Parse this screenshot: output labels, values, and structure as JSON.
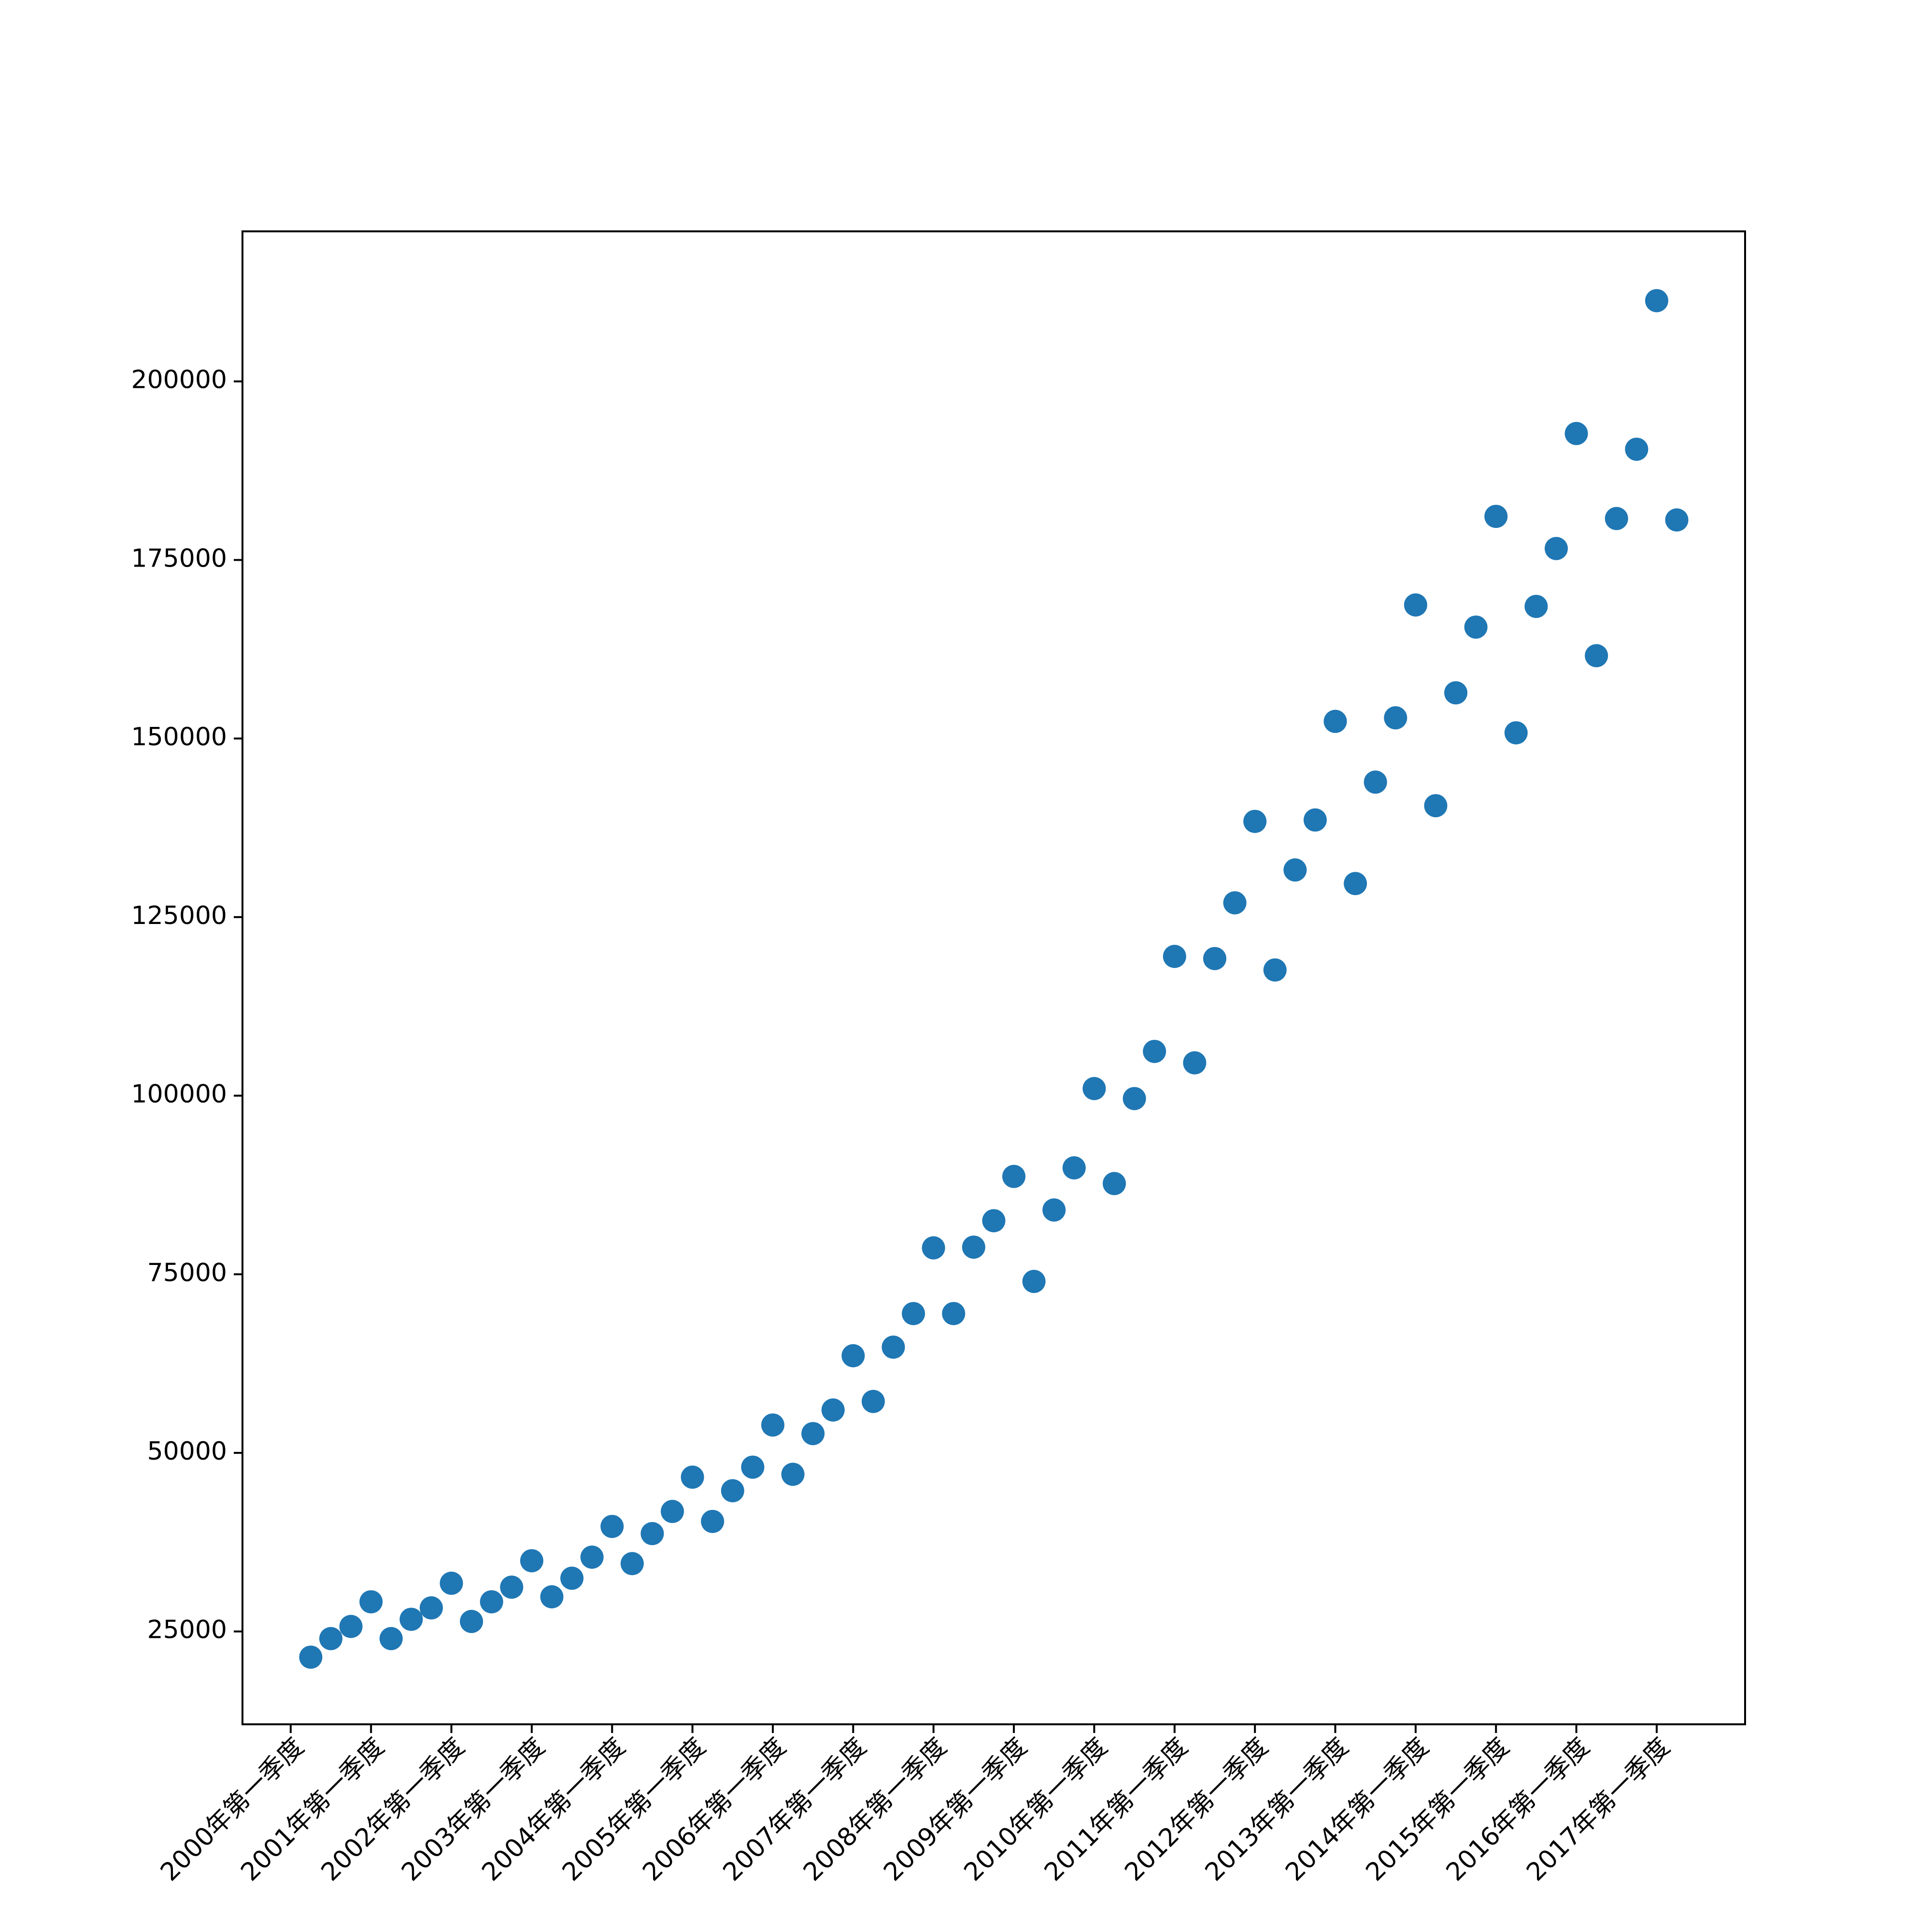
{
  "chart_data": {
    "type": "scatter",
    "x": [
      0,
      1,
      2,
      3,
      4,
      5,
      6,
      7,
      8,
      9,
      10,
      11,
      12,
      13,
      14,
      15,
      16,
      17,
      18,
      19,
      20,
      21,
      22,
      23,
      24,
      25,
      26,
      27,
      28,
      29,
      30,
      31,
      32,
      33,
      34,
      35,
      36,
      37,
      38,
      39,
      40,
      41,
      42,
      43,
      44,
      45,
      46,
      47,
      48,
      49,
      50,
      51,
      52,
      53,
      54,
      55,
      56,
      57,
      58,
      59,
      60,
      61,
      62,
      63,
      64,
      65,
      66,
      67,
      68
    ],
    "series": [
      {
        "color": "#1f77b4",
        "values": [
          21400,
          24000,
          25700,
          29150,
          24000,
          26700,
          28300,
          31750,
          26400,
          29150,
          31200,
          34900,
          29850,
          32450,
          35400,
          39700,
          34500,
          38700,
          41800,
          46600,
          40400,
          44700,
          48000,
          53900,
          47000,
          52700,
          56000,
          63600,
          57200,
          64800,
          69500,
          78700,
          69500,
          78800,
          82500,
          88700,
          74000,
          84000,
          89900,
          101000,
          87700,
          99600,
          106200,
          119500,
          104600,
          119200,
          127000,
          138400,
          117600,
          131600,
          138600,
          152400,
          129700,
          143900,
          152900,
          168700,
          140600,
          156400,
          165600,
          181100,
          150800,
          168500,
          176600,
          192700,
          161600,
          180800,
          190500,
          211300,
          180600
        ]
      }
    ],
    "xlim": [
      -3.4,
      71.4
    ],
    "xticks": [
      {
        "value": -1,
        "label": "2000年第一季度"
      },
      {
        "value": 3,
        "label": "2001年第一季度"
      },
      {
        "value": 7,
        "label": "2002年第一季度"
      },
      {
        "value": 11,
        "label": "2003年第一季度"
      },
      {
        "value": 15,
        "label": "2004年第一季度"
      },
      {
        "value": 19,
        "label": "2005年第一季度"
      },
      {
        "value": 23,
        "label": "2006年第一季度"
      },
      {
        "value": 27,
        "label": "2007年第一季度"
      },
      {
        "value": 31,
        "label": "2008年第一季度"
      },
      {
        "value": 35,
        "label": "2009年第一季度"
      },
      {
        "value": 39,
        "label": "2010年第一季度"
      },
      {
        "value": 43,
        "label": "2011年第一季度"
      },
      {
        "value": 47,
        "label": "2012年第一季度"
      },
      {
        "value": 51,
        "label": "2013年第一季度"
      },
      {
        "value": 55,
        "label": "2014年第一季度"
      },
      {
        "value": 59,
        "label": "2015年第一季度"
      },
      {
        "value": 63,
        "label": "2016年第一季度"
      },
      {
        "value": 67,
        "label": "2017年第一季度"
      }
    ],
    "ylim": [
      12000,
      221000
    ],
    "yticks": [
      25000,
      50000,
      75000,
      100000,
      125000,
      150000,
      175000,
      200000
    ],
    "grid": false
  }
}
